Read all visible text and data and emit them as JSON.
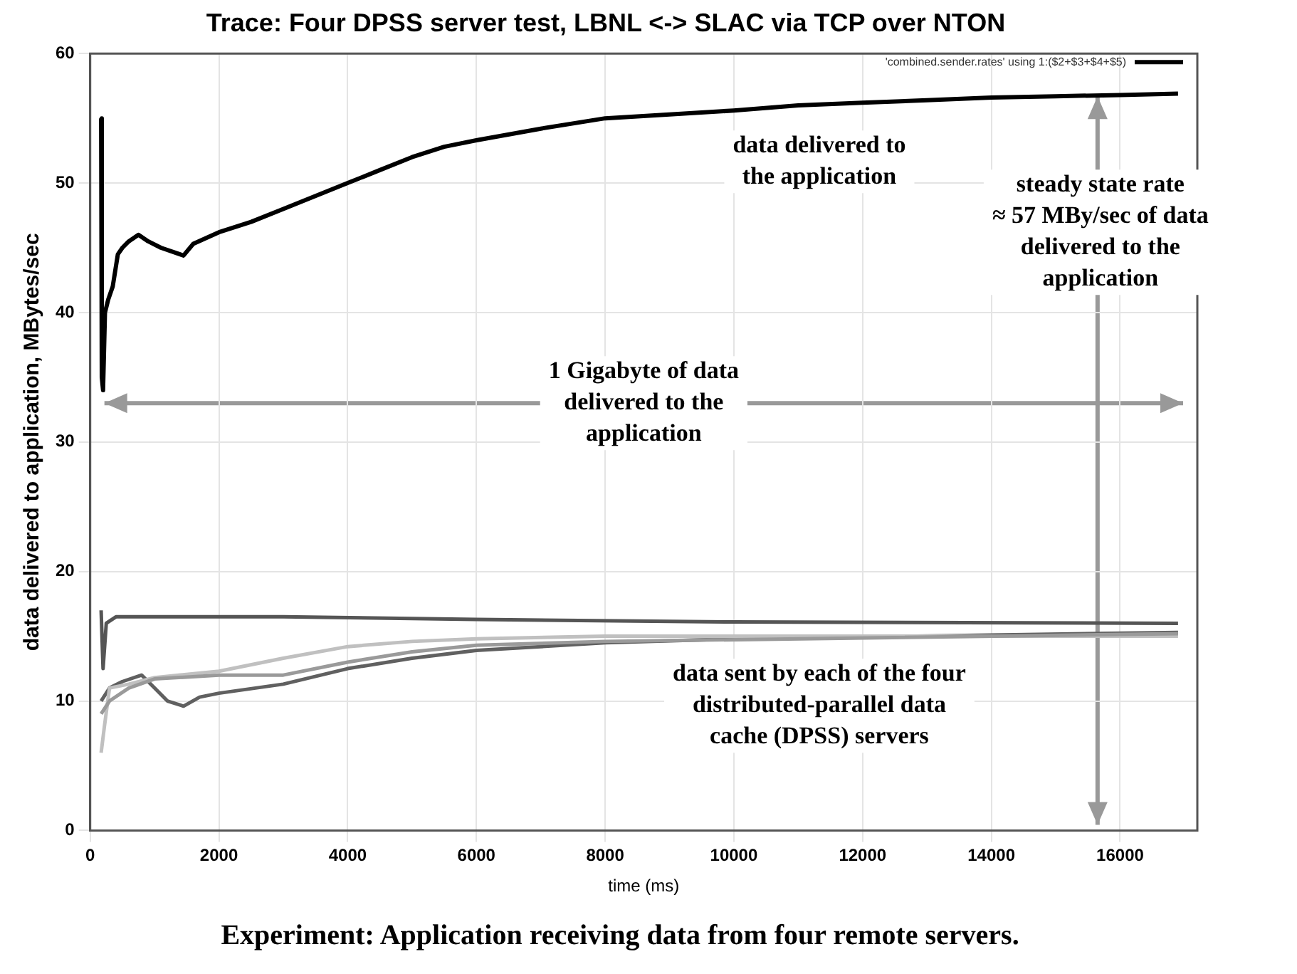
{
  "chart_data": {
    "type": "line",
    "title": "Trace: Four DPSS server test, LBNL <-> SLAC via TCP over NTON",
    "xlabel": "time (ms)",
    "ylabel": "data delivered to application, MBytes/sec",
    "xlim": [
      0,
      17200
    ],
    "xticks": [
      0,
      2000,
      4000,
      6000,
      8000,
      10000,
      12000,
      14000,
      16000
    ],
    "ylim": [
      0,
      60
    ],
    "yticks": [
      0,
      10,
      20,
      30,
      40,
      50,
      60
    ],
    "grid": true,
    "legend": "top right",
    "marker": "none",
    "line_style": "solid",
    "series": [
      {
        "name": "'combined.sender.rates' using 1:($2+$3+$4+$5)",
        "color": "#000000",
        "x": [
          170,
          180,
          200,
          230,
          280,
          350,
          430,
          500,
          600,
          750,
          900,
          1100,
          1450,
          1600,
          2000,
          2500,
          3000,
          3500,
          4000,
          4500,
          5000,
          5500,
          6000,
          7000,
          8000,
          9000,
          10000,
          11000,
          12000,
          13000,
          14000,
          15000,
          16000,
          16900
        ],
        "values": [
          55,
          35,
          34,
          40,
          41,
          42,
          44.5,
          45,
          45.5,
          46,
          45.5,
          45,
          44.4,
          45.3,
          46.2,
          47,
          48,
          49,
          50,
          51,
          52,
          52.8,
          53.3,
          54.2,
          55,
          55.3,
          55.6,
          56,
          56.2,
          56.4,
          56.6,
          56.7,
          56.8,
          56.9
        ]
      },
      {
        "color": "#555555",
        "x": [
          170,
          200,
          250,
          400,
          1000,
          3000,
          6000,
          10000,
          16900
        ],
        "values": [
          17,
          12.5,
          16,
          16.5,
          16.5,
          16.5,
          16.3,
          16.1,
          16
        ]
      },
      {
        "color": "#606060",
        "x": [
          170,
          300,
          500,
          800,
          1000,
          1200,
          1450,
          1700,
          2000,
          3000,
          4000,
          5000,
          6000,
          8000,
          10000,
          16900
        ],
        "values": [
          10,
          11,
          11.5,
          12,
          11,
          10,
          9.6,
          10.3,
          10.6,
          11.3,
          12.5,
          13.3,
          13.9,
          14.5,
          14.8,
          15.3
        ]
      },
      {
        "color": "#c0c0c0",
        "x": [
          170,
          220,
          300,
          600,
          1000,
          2000,
          3000,
          4000,
          5000,
          6000,
          8000,
          16900
        ],
        "values": [
          6,
          8,
          11,
          11.3,
          11.8,
          12.3,
          13.3,
          14.2,
          14.6,
          14.8,
          15,
          15
        ]
      },
      {
        "color": "#9a9a9a",
        "x": [
          170,
          300,
          600,
          1000,
          2000,
          3000,
          4000,
          5000,
          6000,
          8000,
          16900
        ],
        "values": [
          9,
          10,
          11,
          11.7,
          12,
          12,
          13,
          13.8,
          14.3,
          14.6,
          15.2
        ]
      }
    ],
    "ref_lines": [
      {
        "axis": "x",
        "value": 15650,
        "label": "steady state rate\n≈ 57 MBy/sec of data\ndelivered to the\napplication",
        "color": "#999999"
      },
      {
        "axis": "y",
        "value": 33,
        "label": "1 Gigabyte of data\ndelivered to the\napplication",
        "color": "#999999"
      }
    ],
    "annotations": [
      {
        "text": "data delivered to\nthe application",
        "x": 10000,
        "y": 55.6
      },
      {
        "text": "data sent by each of the four\ndistributed-parallel data\ncache (DPSS) servers",
        "x": 10000,
        "y": 14.8
      },
      "Experiment: Application receiving data from four remote servers."
    ]
  }
}
